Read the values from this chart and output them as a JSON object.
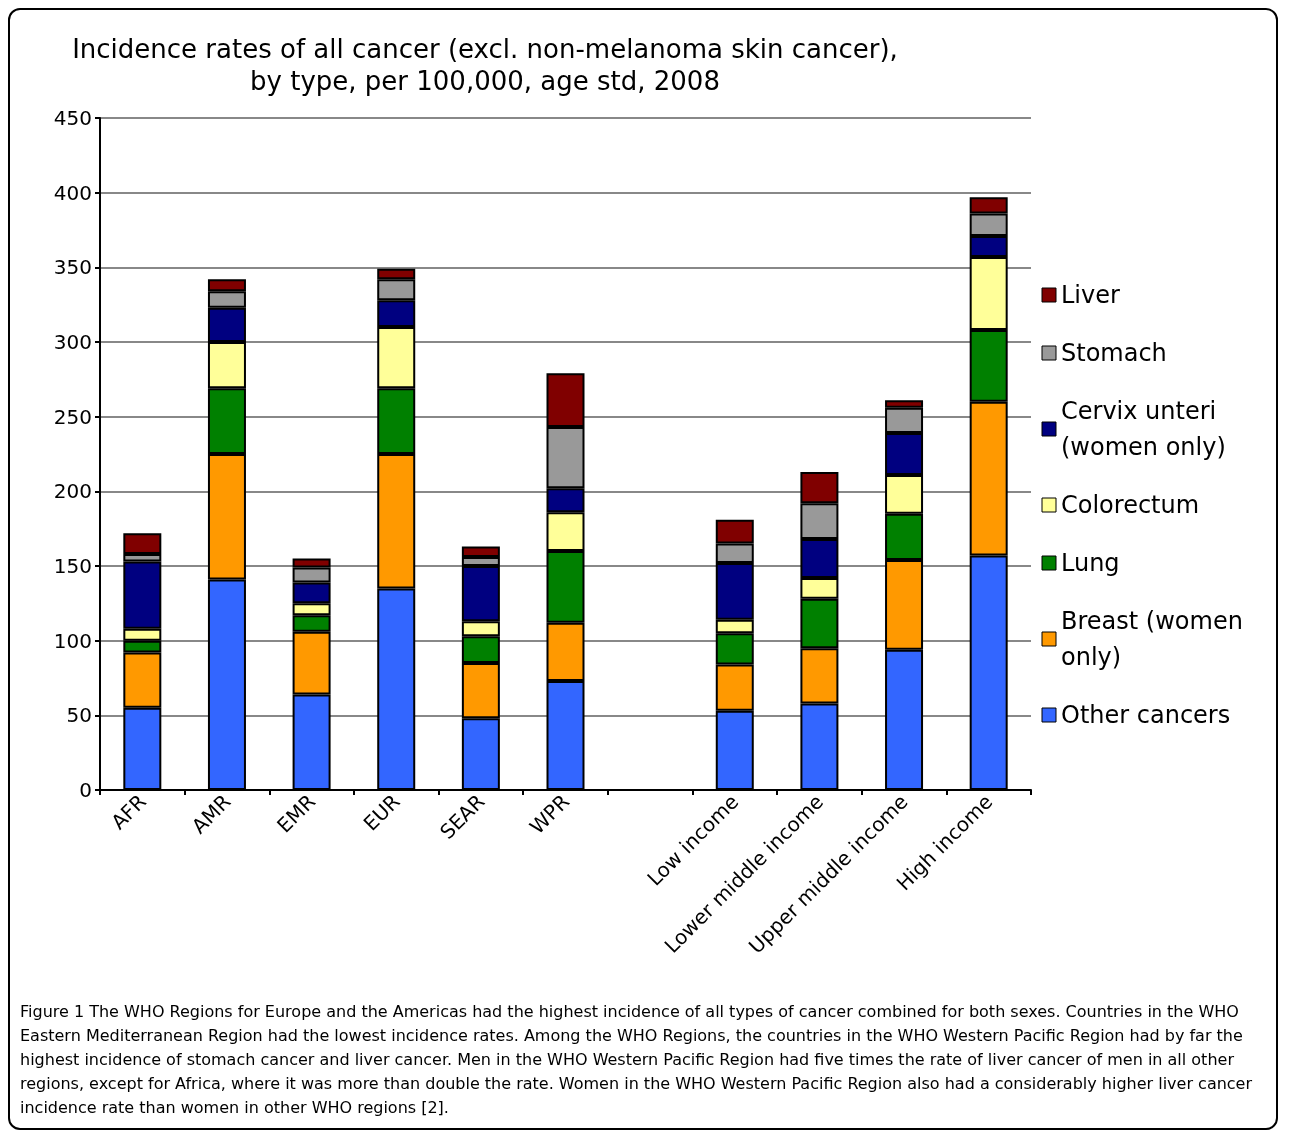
{
  "chart_data": {
    "type": "bar",
    "stacked": true,
    "title": "Incidence rates of all cancer (excl. non-melanoma skin cancer),\nby type, per 100,000, age std, 2008",
    "categories": [
      "AFR",
      "AMR",
      "EMR",
      "EUR",
      "SEAR",
      "WPR",
      null,
      "Low income",
      "Lower middle income",
      "Upper middle income",
      "High income"
    ],
    "series": [
      {
        "name": "Other cancers",
        "color": "#3366ff",
        "values": [
          55,
          141,
          64,
          135,
          48,
          73,
          null,
          53,
          58,
          94,
          157
        ]
      },
      {
        "name": "Breast (women only)",
        "color": "#ff9900",
        "values": [
          37,
          84,
          42,
          90,
          37,
          39,
          null,
          31,
          37,
          60,
          103
        ]
      },
      {
        "name": "Lung",
        "color": "#008000",
        "values": [
          8,
          44,
          11,
          44,
          18,
          48,
          null,
          21,
          33,
          31,
          48
        ]
      },
      {
        "name": "Colorectum",
        "color": "#ffff99",
        "values": [
          8,
          31,
          8,
          41,
          10,
          26,
          null,
          9,
          14,
          26,
          49
        ]
      },
      {
        "name": "Cervix unteri (women only)",
        "color": "#000080",
        "values": [
          45,
          23,
          14,
          18,
          37,
          16,
          null,
          38,
          26,
          28,
          14
        ]
      },
      {
        "name": "Stomach",
        "color": "#999999",
        "values": [
          5,
          11,
          10,
          14,
          6,
          41,
          null,
          13,
          24,
          17,
          15
        ]
      },
      {
        "name": "Liver",
        "color": "#800000",
        "values": [
          14,
          8,
          6,
          7,
          7,
          36,
          null,
          16,
          21,
          5,
          11
        ]
      }
    ],
    "ylim": [
      0,
      450
    ],
    "yticks": [
      0,
      50,
      100,
      150,
      200,
      250,
      300,
      350,
      400,
      450
    ],
    "grid": "y",
    "legend": "right",
    "annotations": [
      "Figure 1 The WHO Regions for Europe and the Americas had the highest incidence of all types of cancer combined for both sexes. Countries in the WHO Eastern Mediterranean Region had the lowest incidence rates. Among the WHO Regions, the countries in the WHO Western Pacific Region had by far the highest incidence of stomach cancer and liver cancer. Men in the WHO Western Pacific Region had five times the rate of liver cancer of men in all other regions, except for Africa, where it was more than double the rate. Women in the WHO Western Pacific Region also had a considerably higher liver cancer incidence rate than women in other WHO regions [2]."
    ]
  }
}
